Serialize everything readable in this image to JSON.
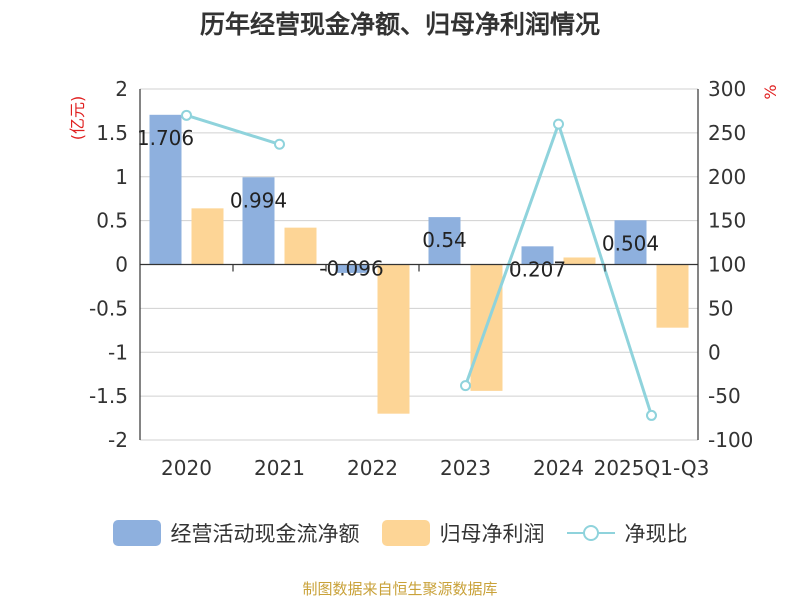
{
  "chart_data": {
    "type": "bar",
    "title": "历年经营现金净额、归母净利润情况",
    "y_left_unit": "(亿元)",
    "y_right_unit": "%",
    "categories": [
      "2020",
      "2021",
      "2022",
      "2023",
      "2024",
      "2025Q1-Q3"
    ],
    "y_left_ticks": [
      "2",
      "1.5",
      "1",
      "0.5",
      "0",
      "-0.5",
      "-1",
      "-1.5",
      "-2"
    ],
    "y_right_ticks": [
      "300",
      "250",
      "200",
      "150",
      "100",
      "50",
      "0",
      "-50",
      "-100"
    ],
    "y_left_range": [
      -2,
      2
    ],
    "y_right_range": [
      -100,
      300
    ],
    "grid": true,
    "legend_position": "bottom",
    "series": [
      {
        "name": "经营活动现金流净额",
        "kind": "bar",
        "axis": "left",
        "color": "#8eb0de",
        "values": [
          1.706,
          0.994,
          -0.096,
          0.54,
          0.207,
          0.504
        ],
        "labels": [
          "1.706",
          "0.994",
          "-0.096",
          "0.54",
          "0.207",
          "0.504"
        ]
      },
      {
        "name": "归母净利润",
        "kind": "bar",
        "axis": "left",
        "color": "#fdd596",
        "values": [
          0.64,
          0.42,
          -1.7,
          -1.44,
          0.08,
          -0.72
        ]
      },
      {
        "name": "净现比",
        "kind": "line",
        "axis": "right",
        "color": "#8fd3dc",
        "values": [
          270,
          237,
          null,
          -38,
          260,
          -72
        ]
      }
    ]
  },
  "source_note": "制图数据来自恒生聚源数据库"
}
